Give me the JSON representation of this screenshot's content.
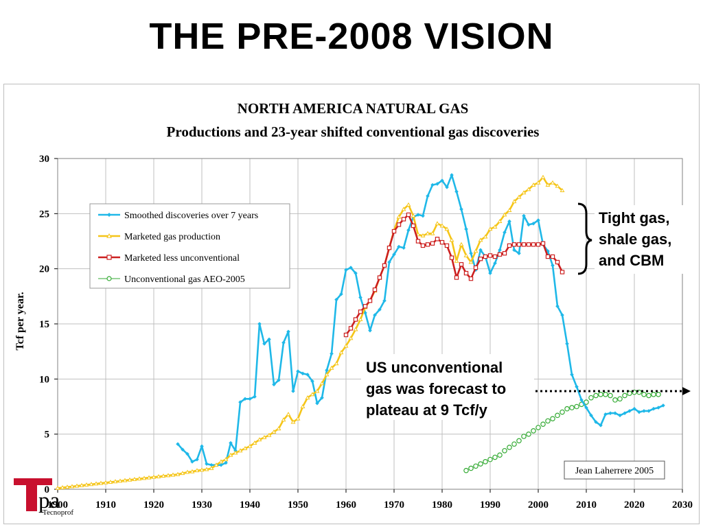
{
  "slide_title": "THE PRE-2008 VISION",
  "chart_data": {
    "type": "line",
    "title": "NORTH AMERICA NATURAL GAS",
    "subtitle": "Productions and 23-year shifted conventional gas discoveries",
    "xlabel": "",
    "ylabel": "Tcf per year.",
    "xlim": [
      1900,
      2030
    ],
    "ylim": [
      0,
      30
    ],
    "xticks": [
      1900,
      1910,
      1920,
      1930,
      1940,
      1950,
      1960,
      1970,
      1980,
      1990,
      2000,
      2010,
      2020,
      2030
    ],
    "yticks": [
      0,
      5,
      10,
      15,
      20,
      25,
      30
    ],
    "grid": true,
    "legend_position": "upper-left",
    "series": [
      {
        "name": "Smoothed discoveries over 7 years",
        "color": "#1fb8e8",
        "marker": "diamond",
        "points": [
          [
            1925,
            4.1
          ],
          [
            1926,
            3.6
          ],
          [
            1927,
            3.2
          ],
          [
            1928,
            2.5
          ],
          [
            1929,
            2.7
          ],
          [
            1930,
            3.9
          ],
          [
            1931,
            2.3
          ],
          [
            1932,
            2.2
          ],
          [
            1933,
            2.2
          ],
          [
            1934,
            2.2
          ],
          [
            1935,
            2.4
          ],
          [
            1936,
            4.2
          ],
          [
            1937,
            3.5
          ],
          [
            1938,
            7.9
          ],
          [
            1939,
            8.2
          ],
          [
            1940,
            8.2
          ],
          [
            1941,
            8.4
          ],
          [
            1942,
            15.0
          ],
          [
            1943,
            13.2
          ],
          [
            1944,
            13.6
          ],
          [
            1945,
            9.5
          ],
          [
            1946,
            9.9
          ],
          [
            1947,
            13.3
          ],
          [
            1948,
            14.3
          ],
          [
            1949,
            8.9
          ],
          [
            1950,
            10.7
          ],
          [
            1951,
            10.5
          ],
          [
            1952,
            10.4
          ],
          [
            1953,
            9.8
          ],
          [
            1954,
            7.8
          ],
          [
            1955,
            8.3
          ],
          [
            1956,
            10.8
          ],
          [
            1957,
            12.3
          ],
          [
            1958,
            17.2
          ],
          [
            1959,
            17.7
          ],
          [
            1960,
            19.9
          ],
          [
            1961,
            20.1
          ],
          [
            1962,
            19.6
          ],
          [
            1963,
            17.4
          ],
          [
            1964,
            16.0
          ],
          [
            1965,
            14.4
          ],
          [
            1966,
            15.8
          ],
          [
            1967,
            16.3
          ],
          [
            1968,
            17.1
          ],
          [
            1969,
            20.6
          ],
          [
            1970,
            21.3
          ],
          [
            1971,
            22.0
          ],
          [
            1972,
            21.9
          ],
          [
            1973,
            23.5
          ],
          [
            1974,
            24.7
          ],
          [
            1975,
            24.9
          ],
          [
            1976,
            24.8
          ],
          [
            1977,
            26.6
          ],
          [
            1978,
            27.6
          ],
          [
            1979,
            27.7
          ],
          [
            1980,
            28.0
          ],
          [
            1981,
            27.4
          ],
          [
            1982,
            28.5
          ],
          [
            1983,
            27.0
          ],
          [
            1984,
            25.4
          ],
          [
            1985,
            23.6
          ],
          [
            1986,
            21.4
          ],
          [
            1987,
            19.9
          ],
          [
            1988,
            21.7
          ],
          [
            1989,
            21.1
          ],
          [
            1990,
            19.6
          ],
          [
            1991,
            20.5
          ],
          [
            1992,
            21.7
          ],
          [
            1993,
            23.3
          ],
          [
            1994,
            24.3
          ],
          [
            1995,
            21.7
          ],
          [
            1996,
            21.4
          ],
          [
            1997,
            24.8
          ],
          [
            1998,
            24.0
          ],
          [
            1999,
            24.1
          ],
          [
            2000,
            24.4
          ],
          [
            2001,
            22.2
          ],
          [
            2002,
            21.6
          ],
          [
            2003,
            20.3
          ],
          [
            2004,
            16.6
          ],
          [
            2005,
            15.8
          ],
          [
            2006,
            13.2
          ],
          [
            2007,
            10.4
          ],
          [
            2008,
            9.3
          ],
          [
            2009,
            8.1
          ],
          [
            2010,
            7.4
          ],
          [
            2011,
            6.7
          ],
          [
            2012,
            6.1
          ],
          [
            2013,
            5.8
          ],
          [
            2014,
            6.8
          ],
          [
            2015,
            6.9
          ],
          [
            2016,
            6.9
          ],
          [
            2017,
            6.7
          ],
          [
            2018,
            6.9
          ],
          [
            2019,
            7.1
          ],
          [
            2020,
            7.3
          ],
          [
            2021,
            7.0
          ],
          [
            2022,
            7.1
          ],
          [
            2023,
            7.1
          ],
          [
            2024,
            7.3
          ],
          [
            2025,
            7.4
          ],
          [
            2026,
            7.6
          ]
        ]
      },
      {
        "name": "Marketed gas production",
        "color": "#f5c518",
        "marker": "triangle",
        "points": [
          [
            1900,
            0.1
          ],
          [
            1901,
            0.15
          ],
          [
            1902,
            0.2
          ],
          [
            1903,
            0.25
          ],
          [
            1904,
            0.3
          ],
          [
            1905,
            0.35
          ],
          [
            1906,
            0.4
          ],
          [
            1907,
            0.45
          ],
          [
            1908,
            0.5
          ],
          [
            1909,
            0.55
          ],
          [
            1910,
            0.6
          ],
          [
            1911,
            0.65
          ],
          [
            1912,
            0.7
          ],
          [
            1913,
            0.75
          ],
          [
            1914,
            0.8
          ],
          [
            1915,
            0.85
          ],
          [
            1916,
            0.9
          ],
          [
            1917,
            0.95
          ],
          [
            1918,
            1.0
          ],
          [
            1919,
            1.05
          ],
          [
            1920,
            1.1
          ],
          [
            1921,
            1.15
          ],
          [
            1922,
            1.2
          ],
          [
            1923,
            1.25
          ],
          [
            1924,
            1.3
          ],
          [
            1925,
            1.35
          ],
          [
            1926,
            1.45
          ],
          [
            1927,
            1.55
          ],
          [
            1928,
            1.6
          ],
          [
            1929,
            1.7
          ],
          [
            1930,
            1.75
          ],
          [
            1931,
            1.8
          ],
          [
            1932,
            1.9
          ],
          [
            1933,
            2.2
          ],
          [
            1934,
            2.5
          ],
          [
            1935,
            2.7
          ],
          [
            1936,
            3.1
          ],
          [
            1937,
            3.3
          ],
          [
            1938,
            3.5
          ],
          [
            1939,
            3.7
          ],
          [
            1940,
            3.9
          ],
          [
            1941,
            4.2
          ],
          [
            1942,
            4.5
          ],
          [
            1943,
            4.7
          ],
          [
            1944,
            4.9
          ],
          [
            1945,
            5.2
          ],
          [
            1946,
            5.5
          ],
          [
            1947,
            6.3
          ],
          [
            1948,
            6.8
          ],
          [
            1949,
            6.1
          ],
          [
            1950,
            6.4
          ],
          [
            1951,
            7.5
          ],
          [
            1952,
            8.3
          ],
          [
            1953,
            8.6
          ],
          [
            1954,
            8.9
          ],
          [
            1955,
            9.6
          ],
          [
            1956,
            10.4
          ],
          [
            1957,
            11.0
          ],
          [
            1958,
            11.4
          ],
          [
            1959,
            12.4
          ],
          [
            1960,
            13.0
          ],
          [
            1961,
            13.7
          ],
          [
            1962,
            14.5
          ],
          [
            1963,
            15.4
          ],
          [
            1964,
            16.5
          ],
          [
            1965,
            17.1
          ],
          [
            1966,
            18.0
          ],
          [
            1967,
            19.2
          ],
          [
            1968,
            20.3
          ],
          [
            1969,
            21.9
          ],
          [
            1970,
            23.5
          ],
          [
            1971,
            24.7
          ],
          [
            1972,
            25.4
          ],
          [
            1973,
            25.8
          ],
          [
            1974,
            24.8
          ],
          [
            1975,
            23.1
          ],
          [
            1976,
            23.0
          ],
          [
            1977,
            23.2
          ],
          [
            1978,
            23.2
          ],
          [
            1979,
            24.1
          ],
          [
            1980,
            23.9
          ],
          [
            1981,
            23.6
          ],
          [
            1982,
            22.6
          ],
          [
            1983,
            20.7
          ],
          [
            1984,
            22.2
          ],
          [
            1985,
            21.2
          ],
          [
            1986,
            20.6
          ],
          [
            1987,
            21.6
          ],
          [
            1988,
            22.6
          ],
          [
            1989,
            22.9
          ],
          [
            1990,
            23.6
          ],
          [
            1991,
            23.8
          ],
          [
            1992,
            24.3
          ],
          [
            1993,
            24.9
          ],
          [
            1994,
            25.3
          ],
          [
            1995,
            26.1
          ],
          [
            1996,
            26.5
          ],
          [
            1997,
            26.9
          ],
          [
            1998,
            27.2
          ],
          [
            1999,
            27.6
          ],
          [
            2000,
            27.8
          ],
          [
            2001,
            28.3
          ],
          [
            2002,
            27.6
          ],
          [
            2003,
            27.8
          ],
          [
            2004,
            27.5
          ],
          [
            2005,
            27.1
          ]
        ]
      },
      {
        "name": "Marketed less unconventional",
        "color": "#cc1f1f",
        "marker": "square",
        "points": [
          [
            1960,
            14.0
          ],
          [
            1961,
            14.6
          ],
          [
            1962,
            15.4
          ],
          [
            1963,
            16.1
          ],
          [
            1964,
            16.6
          ],
          [
            1965,
            17.1
          ],
          [
            1966,
            18.1
          ],
          [
            1967,
            19.2
          ],
          [
            1968,
            20.3
          ],
          [
            1969,
            21.9
          ],
          [
            1970,
            23.4
          ],
          [
            1971,
            24.0
          ],
          [
            1972,
            24.5
          ],
          [
            1973,
            24.9
          ],
          [
            1974,
            23.9
          ],
          [
            1975,
            22.5
          ],
          [
            1976,
            22.1
          ],
          [
            1977,
            22.2
          ],
          [
            1978,
            22.3
          ],
          [
            1979,
            22.7
          ],
          [
            1980,
            22.4
          ],
          [
            1981,
            22.1
          ],
          [
            1982,
            21.0
          ],
          [
            1983,
            19.2
          ],
          [
            1984,
            20.4
          ],
          [
            1985,
            19.6
          ],
          [
            1986,
            19.1
          ],
          [
            1987,
            20.1
          ],
          [
            1988,
            20.9
          ],
          [
            1989,
            21.1
          ],
          [
            1990,
            21.2
          ],
          [
            1991,
            21.1
          ],
          [
            1992,
            21.3
          ],
          [
            1993,
            21.4
          ],
          [
            1994,
            22.1
          ],
          [
            1995,
            22.2
          ],
          [
            1996,
            22.2
          ],
          [
            1997,
            22.2
          ],
          [
            1998,
            22.2
          ],
          [
            1999,
            22.2
          ],
          [
            2000,
            22.2
          ],
          [
            2001,
            22.3
          ],
          [
            2002,
            21.1
          ],
          [
            2003,
            21.1
          ],
          [
            2004,
            20.6
          ],
          [
            2005,
            19.7
          ]
        ]
      },
      {
        "name": "Unconventional gas AEO-2005",
        "color": "#33aa33",
        "marker": "circle",
        "points": [
          [
            1985,
            1.7
          ],
          [
            1986,
            1.9
          ],
          [
            1987,
            2.1
          ],
          [
            1988,
            2.3
          ],
          [
            1989,
            2.5
          ],
          [
            1990,
            2.7
          ],
          [
            1991,
            2.9
          ],
          [
            1992,
            3.1
          ],
          [
            1993,
            3.5
          ],
          [
            1994,
            3.8
          ],
          [
            1995,
            4.1
          ],
          [
            1996,
            4.4
          ],
          [
            1997,
            4.8
          ],
          [
            1998,
            5.0
          ],
          [
            1999,
            5.3
          ],
          [
            2000,
            5.6
          ],
          [
            2001,
            5.9
          ],
          [
            2002,
            6.2
          ],
          [
            2003,
            6.4
          ],
          [
            2004,
            6.7
          ],
          [
            2005,
            7.0
          ],
          [
            2006,
            7.3
          ],
          [
            2007,
            7.4
          ],
          [
            2008,
            7.5
          ],
          [
            2009,
            7.7
          ],
          [
            2010,
            7.9
          ],
          [
            2011,
            8.3
          ],
          [
            2012,
            8.5
          ],
          [
            2013,
            8.6
          ],
          [
            2014,
            8.6
          ],
          [
            2015,
            8.5
          ],
          [
            2016,
            8.1
          ],
          [
            2017,
            8.2
          ],
          [
            2018,
            8.5
          ],
          [
            2019,
            8.7
          ],
          [
            2020,
            8.8
          ],
          [
            2021,
            8.8
          ],
          [
            2022,
            8.6
          ],
          [
            2023,
            8.5
          ],
          [
            2024,
            8.6
          ],
          [
            2025,
            8.6
          ]
        ]
      }
    ],
    "annotations": {
      "credit": "Jean Laherrere 2005",
      "bracket_label": [
        "Tight gas,",
        "shale gas,",
        "and CBM"
      ],
      "forecast_note": [
        "US unconventional",
        "gas was forecast to",
        "plateau at 9 Tcf/y"
      ]
    }
  },
  "logo": {
    "letter_t": "T",
    "letters_pa": "pa",
    "sub_text": "Tecnoprof",
    "accent_color": "#c8102e"
  }
}
